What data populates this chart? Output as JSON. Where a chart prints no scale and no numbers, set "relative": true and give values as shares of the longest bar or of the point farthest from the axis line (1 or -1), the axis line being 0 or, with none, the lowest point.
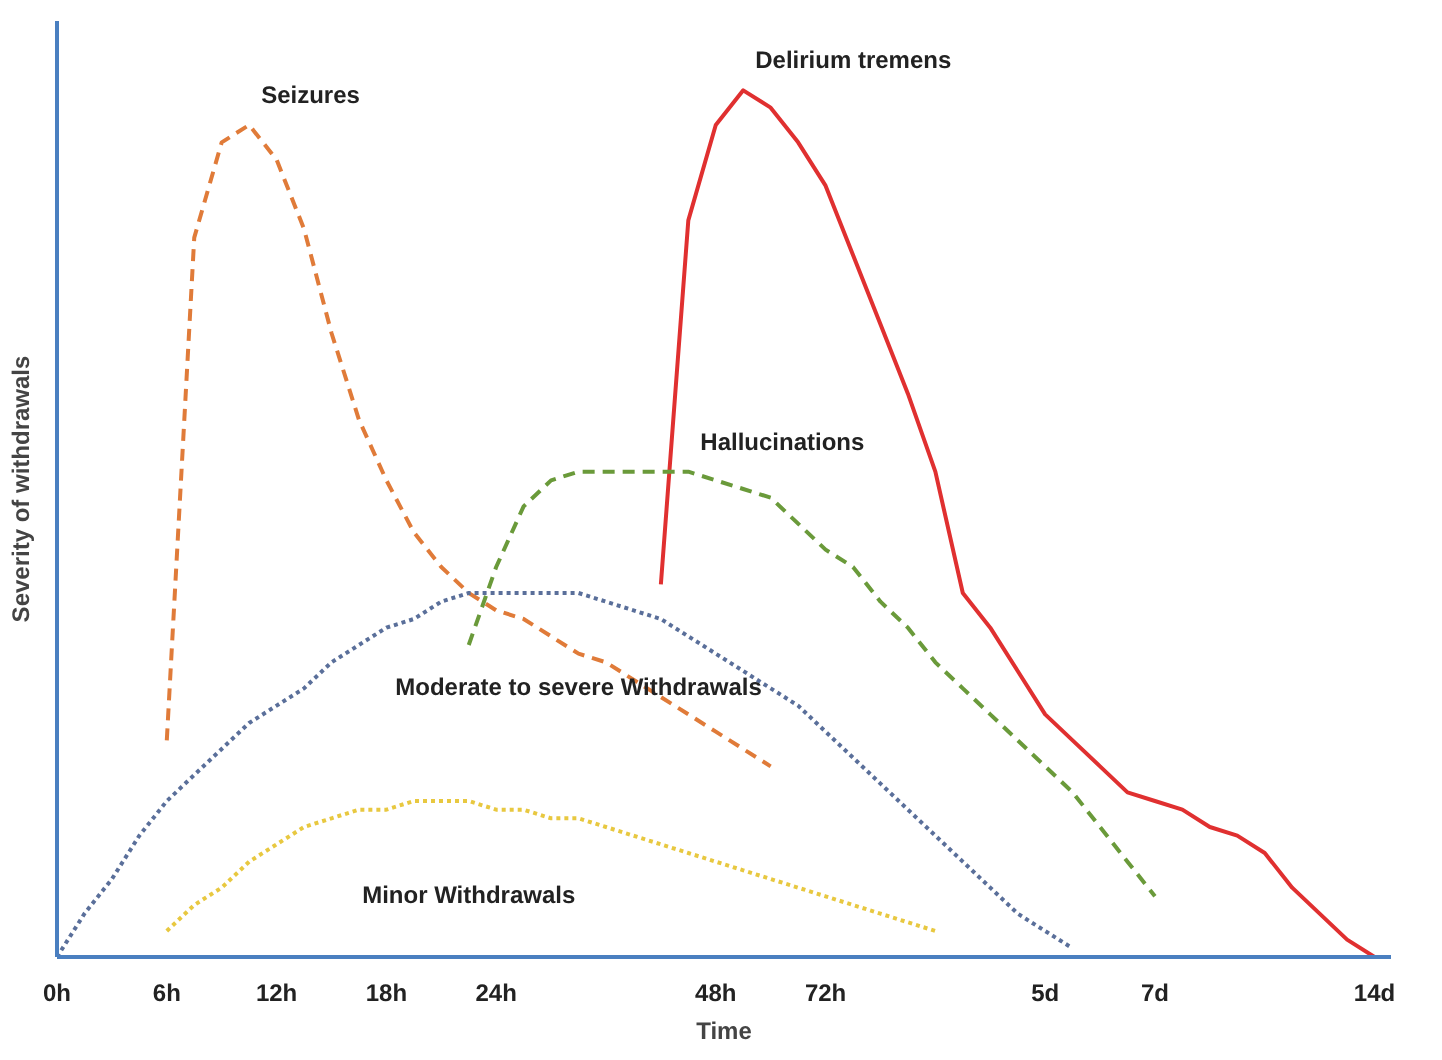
{
  "chart_data": {
    "type": "line",
    "relative": true,
    "xlabel": "Time",
    "ylabel": "Severity of withdrawals",
    "grid": false,
    "marker": "none",
    "categories": [
      "0h",
      null,
      null,
      null,
      "6h",
      null,
      null,
      null,
      "12h",
      null,
      null,
      null,
      "18h",
      null,
      null,
      null,
      "24h",
      null,
      null,
      null,
      null,
      null,
      null,
      null,
      "48h",
      null,
      null,
      null,
      "72h",
      null,
      null,
      null,
      null,
      null,
      null,
      null,
      "5d",
      null,
      null,
      null,
      "7d",
      null,
      null,
      null,
      null,
      null,
      null,
      null,
      "14d"
    ],
    "series": [
      {
        "name": "Seizures",
        "color": "#e07b39",
        "line_style": "dashed",
        "values": [
          null,
          null,
          null,
          null,
          0.25,
          0.83,
          0.94,
          0.96,
          0.92,
          0.84,
          0.72,
          0.62,
          0.55,
          0.49,
          0.45,
          0.42,
          0.4,
          0.39,
          0.37,
          0.35,
          0.34,
          0.32,
          0.3,
          0.28,
          0.26,
          0.24,
          0.22,
          null,
          null,
          null,
          null,
          null,
          null,
          null,
          null,
          null,
          null,
          null,
          null,
          null,
          null,
          null,
          null,
          null,
          null,
          null,
          null,
          null,
          null
        ]
      },
      {
        "name": "Delirium tremens",
        "color": "#e03030",
        "line_style": "solid",
        "values": [
          null,
          null,
          null,
          null,
          null,
          null,
          null,
          null,
          null,
          null,
          null,
          null,
          null,
          null,
          null,
          null,
          null,
          null,
          null,
          null,
          null,
          null,
          0.43,
          0.85,
          0.96,
          1.0,
          0.98,
          0.94,
          0.89,
          0.81,
          0.73,
          0.65,
          0.56,
          0.42,
          0.38,
          0.33,
          0.28,
          0.25,
          0.22,
          0.19,
          0.18,
          0.17,
          0.15,
          0.14,
          0.12,
          0.08,
          0.05,
          0.02,
          0.0
        ]
      },
      {
        "name": "Hallucinations",
        "color": "#6a9a3a",
        "line_style": "dashed",
        "values": [
          null,
          null,
          null,
          null,
          null,
          null,
          null,
          null,
          null,
          null,
          null,
          null,
          null,
          null,
          null,
          0.36,
          0.45,
          0.52,
          0.55,
          0.56,
          0.56,
          0.56,
          0.56,
          0.56,
          0.55,
          0.54,
          0.53,
          0.5,
          0.47,
          0.45,
          0.41,
          0.38,
          0.34,
          0.31,
          0.28,
          0.25,
          0.22,
          0.19,
          0.15,
          0.11,
          0.07,
          null,
          null,
          null,
          null,
          null,
          null,
          null,
          null
        ]
      },
      {
        "name": "Moderate to severe Withdrawals",
        "color": "#5a6f9a",
        "line_style": "dotted",
        "values": [
          0,
          0.05,
          0.09,
          0.14,
          0.18,
          0.21,
          0.24,
          0.27,
          0.29,
          0.31,
          0.34,
          0.36,
          0.38,
          0.39,
          0.41,
          0.42,
          0.42,
          0.42,
          0.42,
          0.42,
          0.41,
          0.4,
          0.39,
          0.37,
          0.35,
          0.33,
          0.31,
          0.29,
          0.26,
          0.23,
          0.2,
          0.17,
          0.14,
          0.11,
          0.08,
          0.05,
          0.03,
          0.01,
          null,
          null,
          null,
          null,
          null,
          null,
          null,
          null,
          null,
          null,
          null
        ]
      },
      {
        "name": "Minor Withdrawals",
        "color": "#e8c840",
        "line_style": "dotted",
        "values": [
          null,
          null,
          null,
          null,
          0.03,
          0.06,
          0.08,
          0.11,
          0.13,
          0.15,
          0.16,
          0.17,
          0.17,
          0.18,
          0.18,
          0.18,
          0.17,
          0.17,
          0.16,
          0.16,
          0.15,
          0.14,
          0.13,
          0.12,
          0.11,
          0.1,
          0.09,
          0.08,
          0.07,
          0.06,
          0.05,
          0.04,
          0.03,
          null,
          null,
          null,
          null,
          null,
          null,
          null,
          null,
          null,
          null,
          null,
          null,
          null,
          null,
          null,
          null
        ]
      }
    ]
  }
}
